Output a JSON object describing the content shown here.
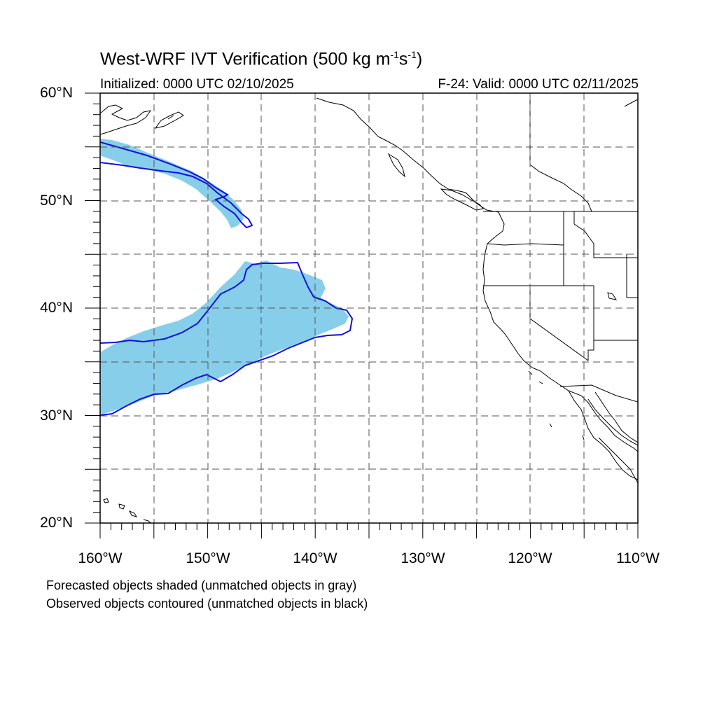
{
  "title": {
    "main": "West-WRF IVT Verification (500 kg m",
    "exp1": "-1",
    "mid": "s",
    "exp2": "-1",
    "end": ")"
  },
  "initialized": "Initialized: 0000 UTC 02/10/2025",
  "valid": "F-24: Valid: 0000 UTC 02/11/2025",
  "lat_labels": [
    "60°N",
    "50°N",
    "40°N",
    "30°N",
    "20°N"
  ],
  "lon_labels": [
    "160°W",
    "150°W",
    "140°W",
    "130°W",
    "120°W",
    "110°W"
  ],
  "notes": [
    "Forecasted objects shaded (unmatched objects in gray)",
    "Observed objects contoured (unmatched objects in black)"
  ],
  "colors": {
    "forecast_fill": "#87ceeb",
    "observed_contour": "#1010e0",
    "coastline": "#000000",
    "grid": "#555555"
  },
  "map": {
    "lon_range": [
      -160,
      -110
    ],
    "lat_range": [
      20,
      60
    ],
    "grid_lon_step": 5,
    "grid_lat_step": 5
  }
}
